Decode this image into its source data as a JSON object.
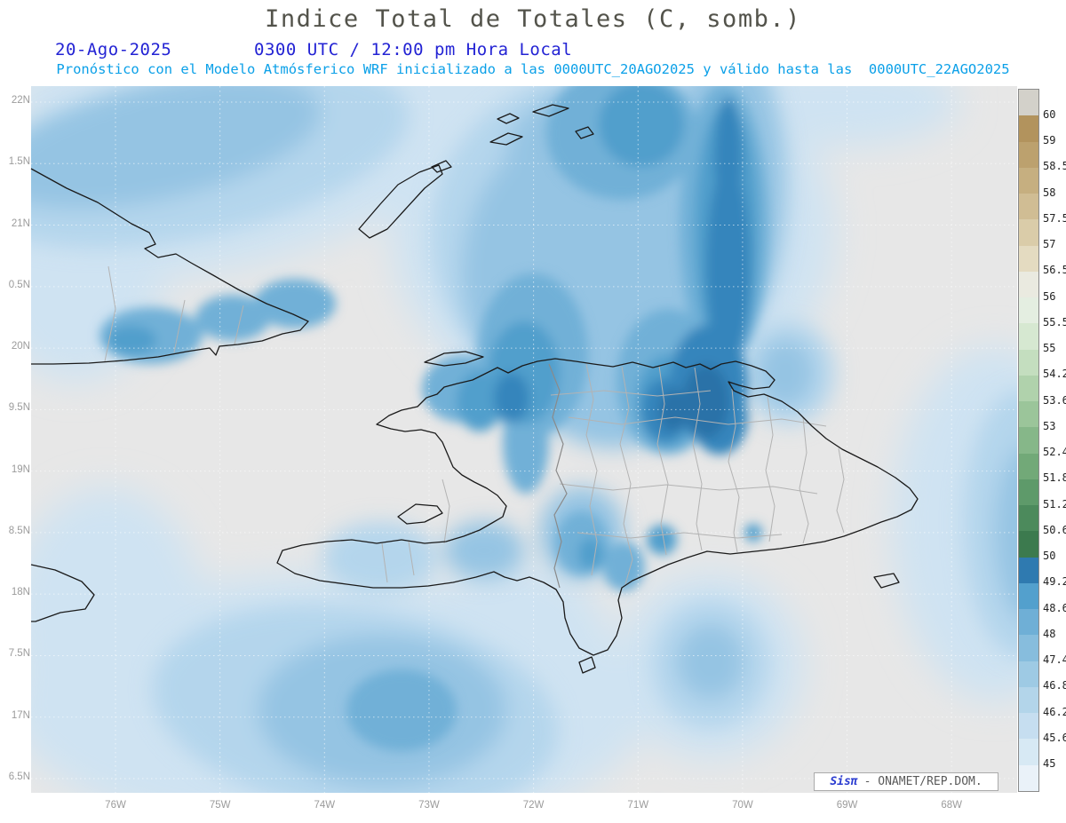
{
  "header": {
    "title": "Indice Total de Totales (C, somb.)",
    "date": "20-Ago-2025",
    "time": "0300 UTC / 12:00 pm Hora Local",
    "forecast_line": "Pronóstico con el Modelo Atmósferico WRF inicializado a las 0000UTC_20AGO2025 y válido hasta las  0000UTC_22AGO2025"
  },
  "map": {
    "y_axis_labels": [
      "22N",
      "1.5N",
      "21N",
      "0.5N",
      "20N",
      "9.5N",
      "19N",
      "8.5N",
      "18N",
      "7.5N",
      "17N",
      "6.5N"
    ],
    "x_axis_labels": [
      "76W",
      "75W",
      "74W",
      "73W",
      "72W",
      "71W",
      "70W",
      "69W",
      "68W"
    ]
  },
  "colorbar": {
    "labels_top_to_bottom": [
      "60",
      "59",
      "58.5",
      "58",
      "57.5",
      "57",
      "56.5",
      "56",
      "55.5",
      "55",
      "54.2",
      "53.6",
      "53",
      "52.4",
      "51.8",
      "51.2",
      "50.6",
      "50",
      "49.2",
      "48.6",
      "48",
      "47.4",
      "46.8",
      "46.2",
      "45.6",
      "45"
    ],
    "colors_bottom_to_top": [
      "#eaf2f9",
      "#d7e9f4",
      "#c6def0",
      "#b3d5ea",
      "#9ecae4",
      "#87bddd",
      "#6fafd6",
      "#53a0cd",
      "#2f7ab0",
      "#3c7a4e",
      "#4c8a5c",
      "#5e9a6a",
      "#72a978",
      "#86b789",
      "#9bc59a",
      "#b0d2ac",
      "#c4debf",
      "#d6e8d1",
      "#e4eee1",
      "#eaeae0",
      "#e4dbc1",
      "#dacca9",
      "#d0bd94",
      "#c6af80",
      "#bca16e",
      "#b2935d",
      "#d3d1ca"
    ]
  },
  "watermark": {
    "brand": "Sisπ",
    "org": "- ONAMET/REP.DOM."
  },
  "chart_data": {
    "type": "heatmap",
    "title": "Indice Total de Totales (C, somb.)",
    "units": "C",
    "shaded_levels": [
      45,
      45.6,
      46.2,
      46.8,
      47.4,
      48,
      48.6,
      49.2,
      50,
      50.6,
      51.2,
      51.8,
      52.4,
      53,
      53.6,
      54.2,
      55,
      55.5,
      56,
      56.5,
      57,
      57.5,
      58,
      58.5,
      59,
      60
    ],
    "lat_ticks_shown": [
      "22N",
      "1.5N",
      "21N",
      "0.5N",
      "20N",
      "9.5N",
      "19N",
      "8.5N",
      "18N",
      "7.5N",
      "17N",
      "6.5N"
    ],
    "lon_ticks_shown": [
      "76W",
      "75W",
      "74W",
      "73W",
      "72W",
      "71W",
      "70W",
      "69W",
      "68W"
    ],
    "legend_position": "right"
  }
}
